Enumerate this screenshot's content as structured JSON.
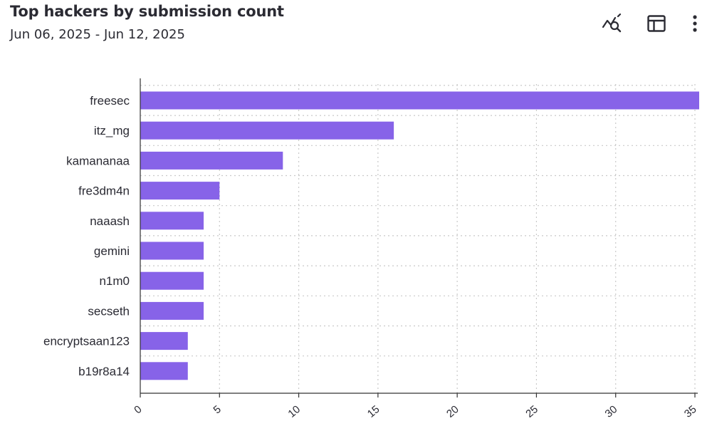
{
  "header": {
    "title": "Top hackers by submission count",
    "date_range": "Jun 06, 2025 - Jun 12, 2025"
  },
  "toolbar": {
    "icons": [
      "chart-search-icon",
      "table-view-icon",
      "more-vert-icon"
    ]
  },
  "colors": {
    "bar": "#8763e8",
    "grid": "#c9c9c9",
    "axis": "#333333",
    "text": "#2a2a33"
  },
  "chart_data": {
    "type": "bar",
    "orientation": "horizontal",
    "title": "Top hackers by submission count",
    "subtitle": "Jun 06, 2025 - Jun 12, 2025",
    "categories": [
      "freesec",
      "itz_mg",
      "kamananaa",
      "fre3dm4n",
      "naaash",
      "gemini",
      "n1m0",
      "secseth",
      "encryptsaan123",
      "b19r8a14"
    ],
    "values": [
      35,
      16,
      9,
      5,
      4,
      4,
      4,
      4,
      3,
      3
    ],
    "xlim": [
      0,
      35
    ],
    "x_ticks": [
      0,
      5,
      10,
      15,
      20,
      25,
      30,
      35
    ],
    "xlabel": "",
    "ylabel": "",
    "grid": true,
    "legend": "none"
  }
}
